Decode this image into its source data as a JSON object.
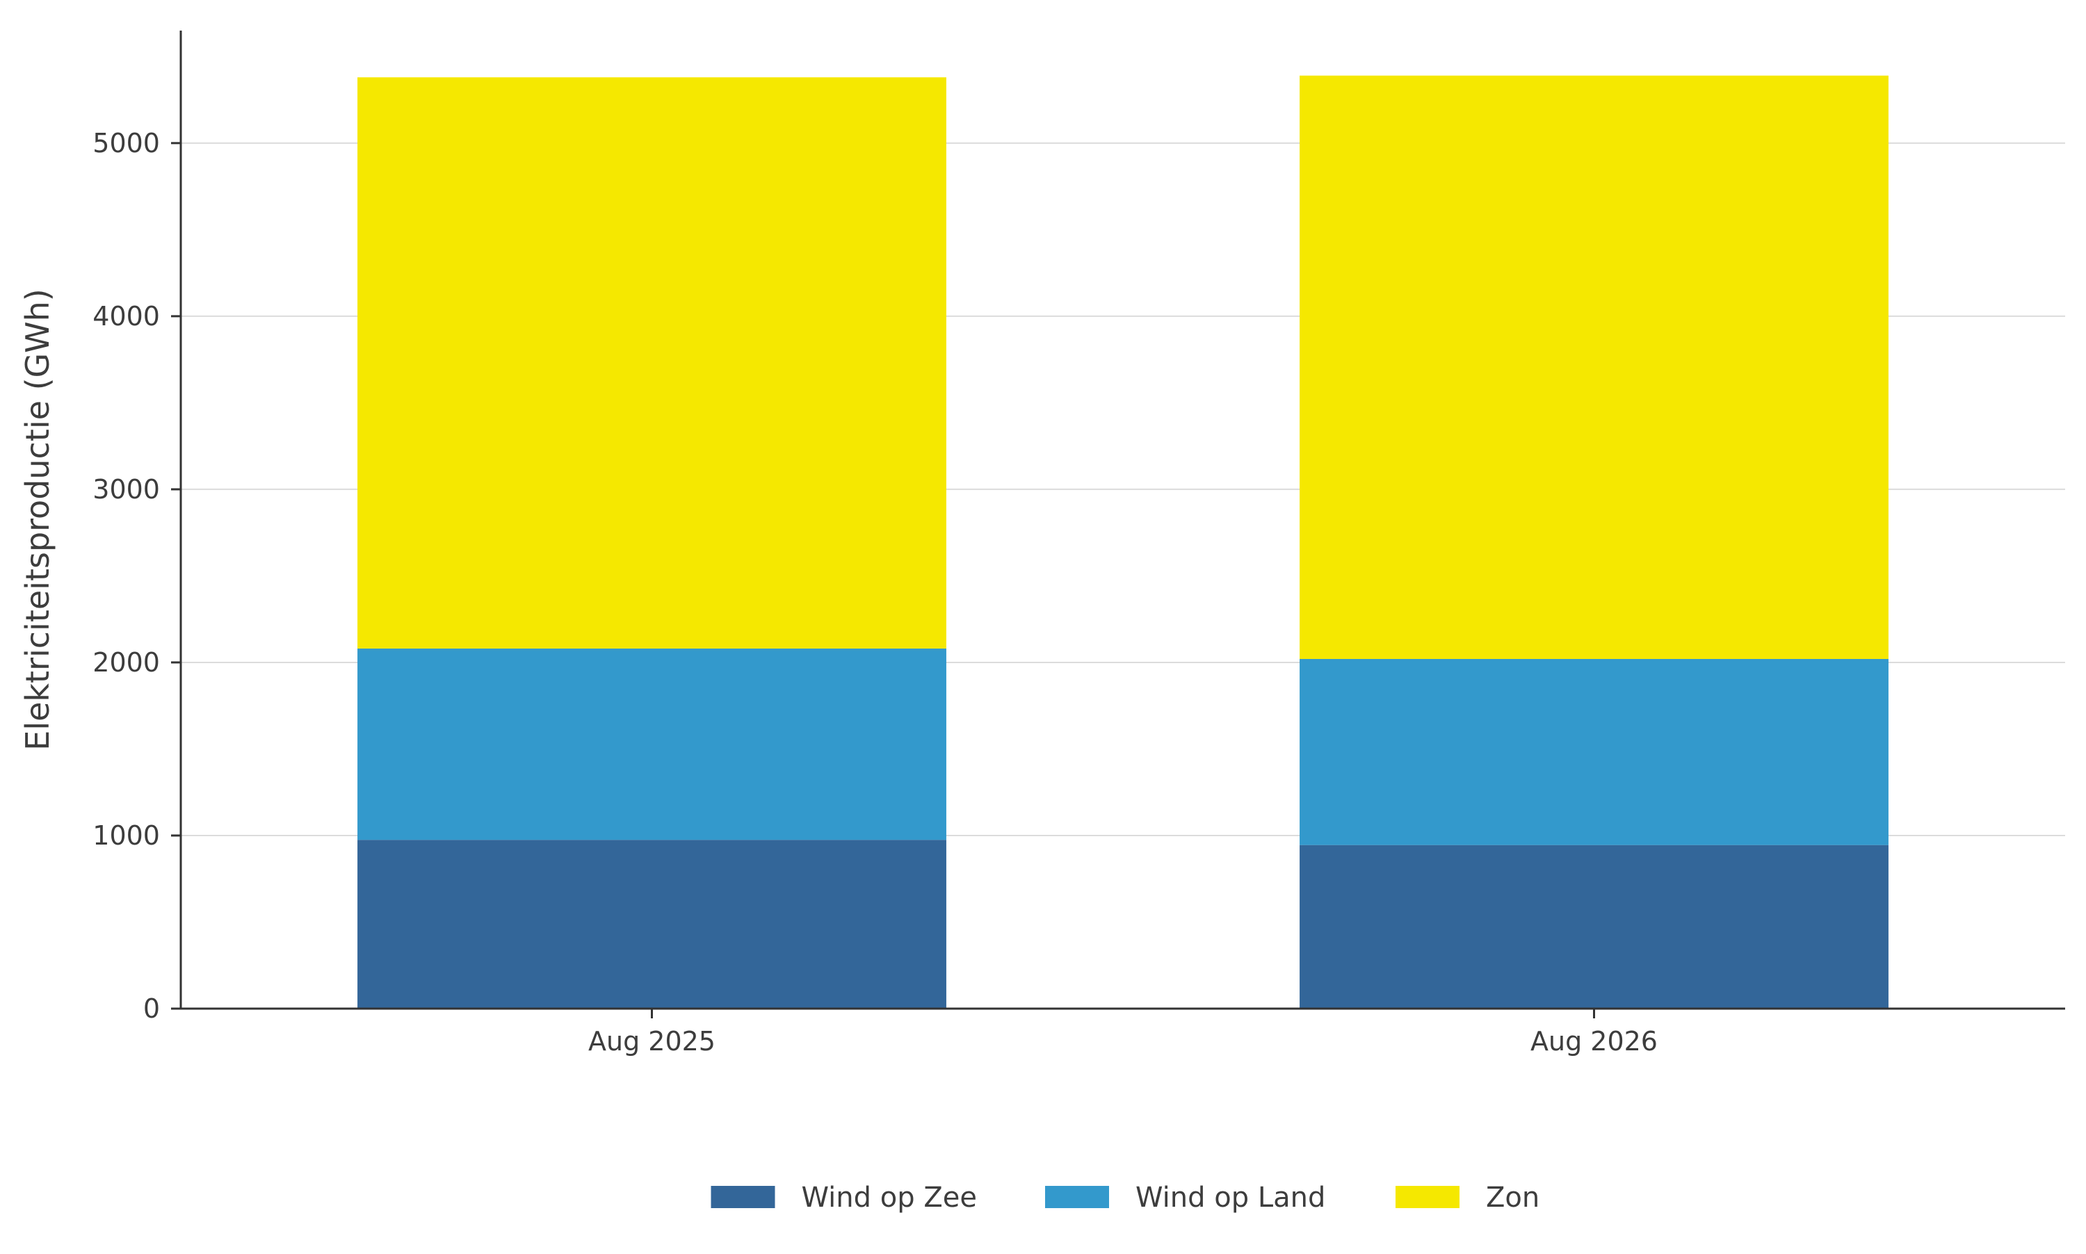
{
  "chart_data": {
    "type": "bar",
    "stacked": true,
    "categories": [
      "Aug 2025",
      "Aug 2026"
    ],
    "series": [
      {
        "name": "Wind op Zee",
        "color": "#336699",
        "values": [
          975,
          945
        ]
      },
      {
        "name": "Wind op Land",
        "color": "#3399cc",
        "values": [
          1105,
          1075
        ]
      },
      {
        "name": "Zon",
        "color": "#f5e800",
        "values": [
          3300,
          3370
        ]
      }
    ],
    "ylabel": "Elektriciteitsproductie (GWh)",
    "xlabel": "",
    "ylim": [
      0,
      5650
    ],
    "yticks": [
      0,
      1000,
      2000,
      3000,
      4000,
      5000
    ],
    "grid": "horizontal",
    "legend_position": "bottom"
  }
}
